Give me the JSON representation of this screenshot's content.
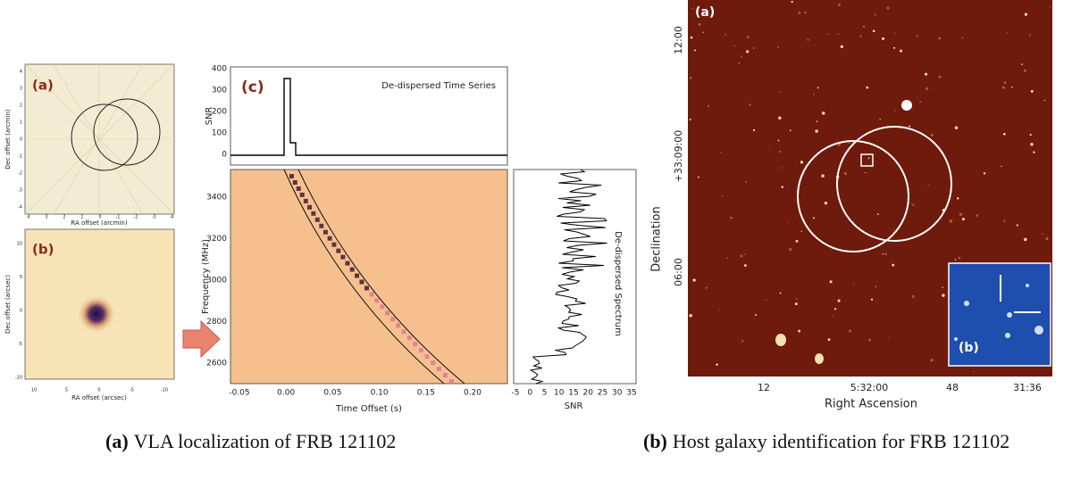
{
  "figure_a": {
    "panel_a": {
      "label": "(a)",
      "ylabel": "Dec offset (arcmin)",
      "xlabel": "RA offset (arcmin)",
      "yticks": [
        "4",
        "3",
        "2",
        "1",
        "0",
        "-1",
        "-2",
        "-3",
        "-4"
      ],
      "xticks": [
        "4",
        "3",
        "2",
        "1",
        "0",
        "-1",
        "-2",
        "-3",
        "-4"
      ]
    },
    "panel_b": {
      "label": "(b)",
      "ylabel": "Dec offset (arcsec)",
      "xlabel": "RA offset (arcsec)",
      "yticks": [
        "10",
        "5",
        "0",
        "-5",
        "-10"
      ],
      "xticks": [
        "10",
        "5",
        "0",
        "-5",
        "-10"
      ]
    },
    "panel_c": {
      "label": "(c)",
      "title": "De-dispersed Time Series",
      "ylabel": "SNR",
      "yticks": [
        "400",
        "300",
        "200",
        "100",
        "0"
      ],
      "freq_label": "Frequency (MHz)",
      "freq_ticks": [
        "3400",
        "3200",
        "3000",
        "2800",
        "2600"
      ],
      "time_label": "Time Offset (s)",
      "time_ticks": [
        "-0.05",
        "0.00",
        "0.05",
        "0.10",
        "0.15",
        "0.20"
      ],
      "spectrum_title": "De-dispersed Spectrum",
      "spectrum_xlabel": "SNR",
      "spectrum_xticks": [
        "-5",
        "0",
        "5",
        "10",
        "15",
        "20",
        "25",
        "30",
        "35"
      ]
    }
  },
  "figure_b": {
    "label": "(a)",
    "ylabel": "Declination",
    "yticks": [
      "12:00",
      "+33:09:00",
      "06:00"
    ],
    "xlabel": "Right Ascension",
    "xticks": [
      "12",
      "5:32:00",
      "48",
      "31:36"
    ],
    "inset_label": "(b)"
  },
  "captions": [
    {
      "label": "(a)",
      "text": "VLA localization of FRB 121102"
    },
    {
      "label": "(b)",
      "text": "Host galaxy identification for FRB 121102"
    }
  ]
}
